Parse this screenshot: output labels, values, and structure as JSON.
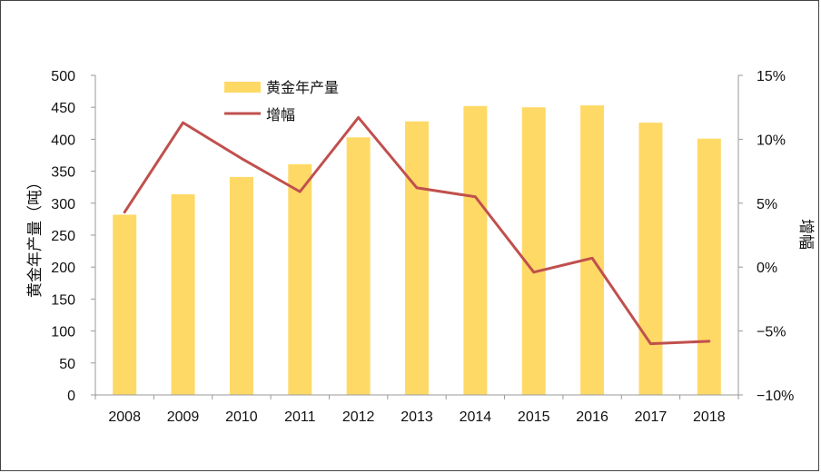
{
  "chart_data": {
    "type": "bar+line",
    "categories": [
      "2008",
      "2009",
      "2010",
      "2011",
      "2012",
      "2013",
      "2014",
      "2015",
      "2016",
      "2017",
      "2018"
    ],
    "series": [
      {
        "name": "黄金年产量",
        "type": "bar",
        "axis": "left",
        "values": [
          282,
          314,
          341,
          361,
          403,
          428,
          452,
          450,
          453,
          426,
          401
        ]
      },
      {
        "name": "增幅",
        "type": "line",
        "axis": "right",
        "values": [
          4.3,
          11.3,
          8.5,
          5.9,
          11.7,
          6.2,
          5.5,
          -0.4,
          0.7,
          -6.0,
          -5.8
        ]
      }
    ],
    "ylabel": "黄金年产量（吨）",
    "ylabel_right": "增幅",
    "ylim": [
      0,
      500
    ],
    "ylim_right": [
      -10,
      15
    ],
    "yticks": [
      "0",
      "50",
      "100",
      "150",
      "200",
      "250",
      "300",
      "350",
      "400",
      "450",
      "500"
    ],
    "yticks_right": [
      "−10%",
      "−5%",
      "0%",
      "5%",
      "10%",
      "15%"
    ],
    "legend_position": "top-left",
    "grid": false,
    "colors": {
      "bar": "#FFD966",
      "line": "#C0504D",
      "axis": "#999999"
    }
  }
}
